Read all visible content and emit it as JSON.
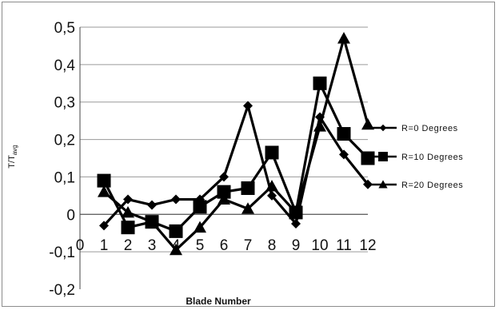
{
  "chart_data": {
    "type": "line",
    "xlabel": "Blade Number",
    "ylabel_main": "T/T",
    "ylabel_sub": "avg",
    "x_ticks": [
      "0",
      "1",
      "2",
      "3",
      "4",
      "5",
      "6",
      "7",
      "8",
      "9",
      "10",
      "11",
      "12"
    ],
    "y_ticks": [
      "0,5",
      "0,4",
      "0,3",
      "0,2",
      "0,1",
      "0",
      "-0,1",
      "-0,2"
    ],
    "ylim": [
      -0.2,
      0.5
    ],
    "xlim": [
      0,
      12
    ],
    "grid": "horizontal",
    "legend_position": "right",
    "x": [
      1,
      2,
      3,
      4,
      5,
      6,
      7,
      8,
      9,
      10,
      11,
      12
    ],
    "series": [
      {
        "name": "R=0 Degrees",
        "marker": "diamond",
        "values": [
          -0.03,
          0.04,
          0.025,
          0.04,
          0.04,
          0.1,
          0.29,
          0.05,
          -0.025,
          0.26,
          0.16,
          0.08
        ]
      },
      {
        "name": "R=10 Degrees",
        "marker": "square",
        "values": [
          0.09,
          -0.035,
          -0.02,
          -0.045,
          0.02,
          0.06,
          0.07,
          0.165,
          0.005,
          0.35,
          0.215,
          0.15
        ]
      },
      {
        "name": "R=20 Degrees",
        "marker": "triangle",
        "values": [
          0.06,
          0.005,
          -0.02,
          -0.095,
          -0.035,
          0.04,
          0.015,
          0.075,
          0.005,
          0.235,
          0.47,
          0.24
        ]
      }
    ]
  }
}
